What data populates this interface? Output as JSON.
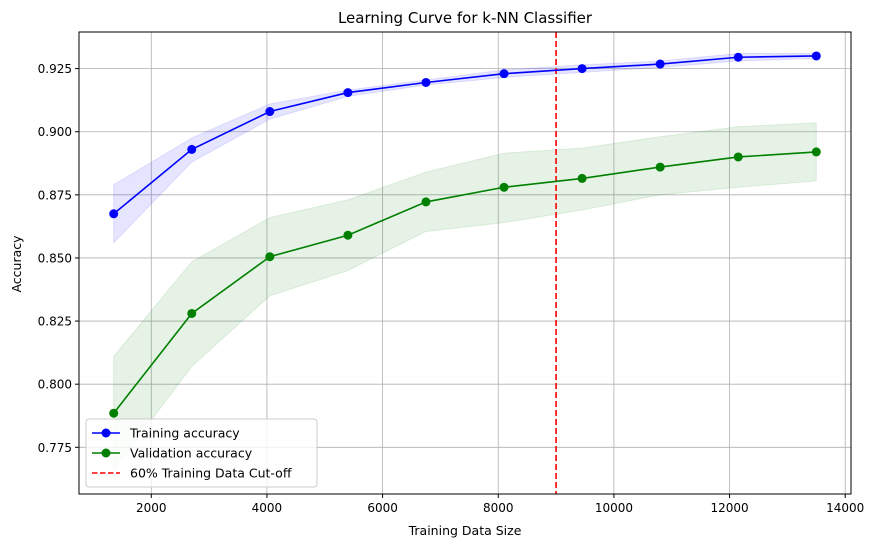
{
  "chart_data": {
    "type": "line",
    "title": "Learning Curve for k-NN Classifier",
    "xlabel": "Training Data Size",
    "ylabel": "Accuracy",
    "xlim": [
      750,
      14100
    ],
    "ylim": [
      0.7565,
      0.9395
    ],
    "x_ticks": [
      2000,
      4000,
      6000,
      8000,
      10000,
      12000,
      14000
    ],
    "y_ticks": [
      0.775,
      0.8,
      0.825,
      0.85,
      0.875,
      0.9,
      0.925
    ],
    "x_tick_labels": [
      "2000",
      "4000",
      "6000",
      "8000",
      "10000",
      "12000",
      "14000"
    ],
    "y_tick_labels": [
      "0.775",
      "0.800",
      "0.825",
      "0.850",
      "0.875",
      "0.900",
      "0.925"
    ],
    "grid": true,
    "legend_position": "lower-left",
    "x": [
      1350,
      2700,
      4050,
      5400,
      6750,
      8100,
      9450,
      10800,
      12150,
      13500
    ],
    "series": [
      {
        "name": "Training accuracy",
        "color": "#0000ff",
        "band_color": "#0000ff",
        "values": [
          0.8675,
          0.893,
          0.908,
          0.9155,
          0.9195,
          0.923,
          0.925,
          0.9268,
          0.9295,
          0.93
        ],
        "band_lower": [
          0.856,
          0.888,
          0.905,
          0.914,
          0.9185,
          0.9215,
          0.9235,
          0.9255,
          0.928,
          0.929
        ],
        "band_upper": [
          0.879,
          0.8975,
          0.911,
          0.9165,
          0.9205,
          0.9245,
          0.9265,
          0.928,
          0.931,
          0.931
        ]
      },
      {
        "name": "Validation accuracy",
        "color": "#008000",
        "band_color": "#008000",
        "values": [
          0.7885,
          0.828,
          0.8505,
          0.859,
          0.8722,
          0.878,
          0.8815,
          0.886,
          0.89,
          0.892
        ],
        "band_lower": [
          0.766,
          0.807,
          0.835,
          0.845,
          0.8605,
          0.864,
          0.869,
          0.875,
          0.878,
          0.8805
        ],
        "band_upper": [
          0.811,
          0.8485,
          0.866,
          0.873,
          0.884,
          0.8915,
          0.8935,
          0.898,
          0.902,
          0.9035
        ]
      }
    ],
    "vline": {
      "name": "60% Training Data Cut-off",
      "x": 9000,
      "color": "#ff0000",
      "style": "dashed"
    }
  }
}
